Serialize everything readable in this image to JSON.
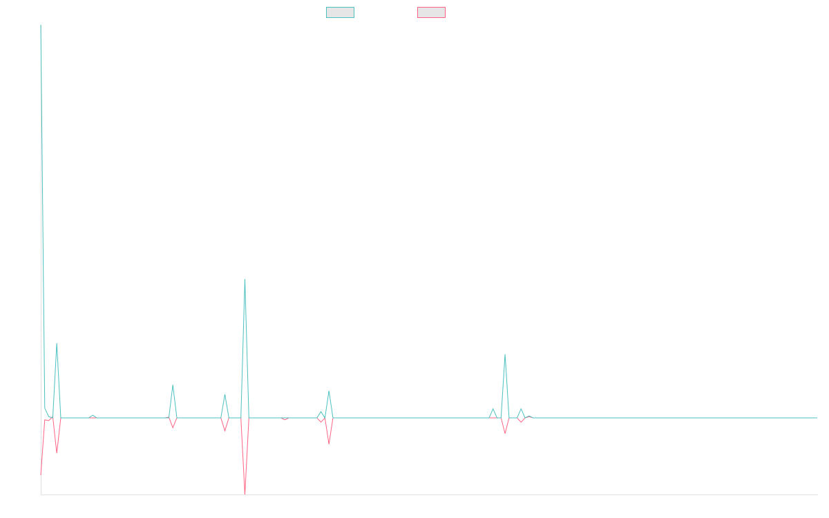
{
  "chart_data": {
    "type": "line",
    "ylim": [
      -19.5,
      100
    ],
    "series": [
      {
        "color": "#4bc0c0",
        "values": [
          100,
          2.5,
          0.3,
          0,
          19,
          0,
          0,
          0,
          0,
          0,
          0,
          0,
          0,
          0.7,
          0,
          0,
          0,
          0,
          0,
          0,
          0,
          0,
          0,
          0,
          0,
          0,
          0,
          0,
          0,
          0,
          0,
          0,
          0,
          8.4,
          0,
          0,
          0,
          0,
          0,
          0,
          0,
          0,
          0,
          0,
          0,
          0,
          6,
          0,
          0,
          0,
          0,
          35.3,
          0,
          0,
          0,
          0,
          0,
          0,
          0,
          0,
          0,
          0,
          0,
          0,
          0,
          0,
          0,
          0,
          0,
          0,
          1.6,
          0,
          6.9,
          0,
          0,
          0,
          0,
          0,
          0,
          0,
          0,
          0,
          0,
          0,
          0,
          0,
          0,
          0,
          0,
          0,
          0,
          0,
          0,
          0,
          0,
          0,
          0,
          0,
          0,
          0,
          0,
          0,
          0,
          0,
          0,
          0,
          0,
          0,
          0,
          0,
          0,
          0,
          0,
          2.3,
          0,
          0,
          16.2,
          0,
          0,
          0,
          2.3,
          0,
          0.5,
          0,
          0,
          0,
          0,
          0,
          0,
          0,
          0,
          0,
          0,
          0,
          0,
          0,
          0,
          0,
          0,
          0,
          0,
          0,
          0,
          0,
          0,
          0,
          0,
          0,
          0,
          0,
          0,
          0,
          0,
          0,
          0,
          0,
          0,
          0,
          0,
          0,
          0,
          0,
          0,
          0,
          0,
          0,
          0,
          0,
          0,
          0,
          0,
          0,
          0,
          0,
          0,
          0,
          0,
          0,
          0,
          0,
          0,
          0,
          0,
          0,
          0,
          0,
          0,
          0,
          0,
          0,
          0,
          0,
          0,
          0,
          0
        ]
      },
      {
        "color": "#ff6384",
        "values": [
          -14.6,
          -0.5,
          -0.7,
          0.3,
          -9,
          0,
          0,
          0,
          0,
          0,
          0,
          0,
          0,
          0,
          0,
          0,
          0,
          0,
          0,
          0,
          0,
          0,
          0,
          0,
          0,
          0,
          0,
          0,
          0,
          0,
          0,
          0,
          0.2,
          -2.5,
          0,
          0,
          0,
          0,
          0,
          0,
          0,
          0,
          0,
          0,
          0,
          0,
          -3.3,
          0,
          0,
          0,
          0,
          -19.5,
          0,
          0,
          0,
          0,
          0,
          0,
          0,
          0,
          0,
          -0.5,
          0,
          0,
          0,
          0,
          0,
          0,
          0,
          0,
          -1.1,
          0,
          -6.7,
          0,
          0,
          0,
          0,
          0,
          0,
          0,
          0,
          0,
          0,
          0,
          0,
          0,
          0,
          0,
          0,
          0,
          0,
          0,
          0,
          0,
          0,
          0,
          0,
          0,
          0,
          0,
          0,
          0,
          0,
          0,
          0,
          0,
          0,
          0,
          0,
          0,
          0,
          0,
          0,
          0,
          0,
          0,
          -4,
          0,
          0,
          0,
          -1.1,
          0,
          0.3,
          0,
          0,
          0,
          0,
          0,
          0,
          0,
          0,
          0,
          0,
          0,
          0,
          0,
          0,
          0,
          0,
          0,
          0,
          0,
          0,
          0,
          0,
          0,
          0,
          0,
          0,
          0,
          0,
          0,
          0,
          0,
          0,
          0,
          0,
          0,
          0,
          0,
          0,
          0,
          0,
          0,
          0,
          0,
          0,
          0,
          0,
          0,
          0,
          0,
          0,
          0,
          0,
          0,
          0,
          0,
          0,
          0,
          0,
          0,
          0,
          0,
          0,
          0,
          0,
          0,
          0,
          0,
          0,
          0,
          0,
          0,
          0
        ]
      }
    ]
  }
}
